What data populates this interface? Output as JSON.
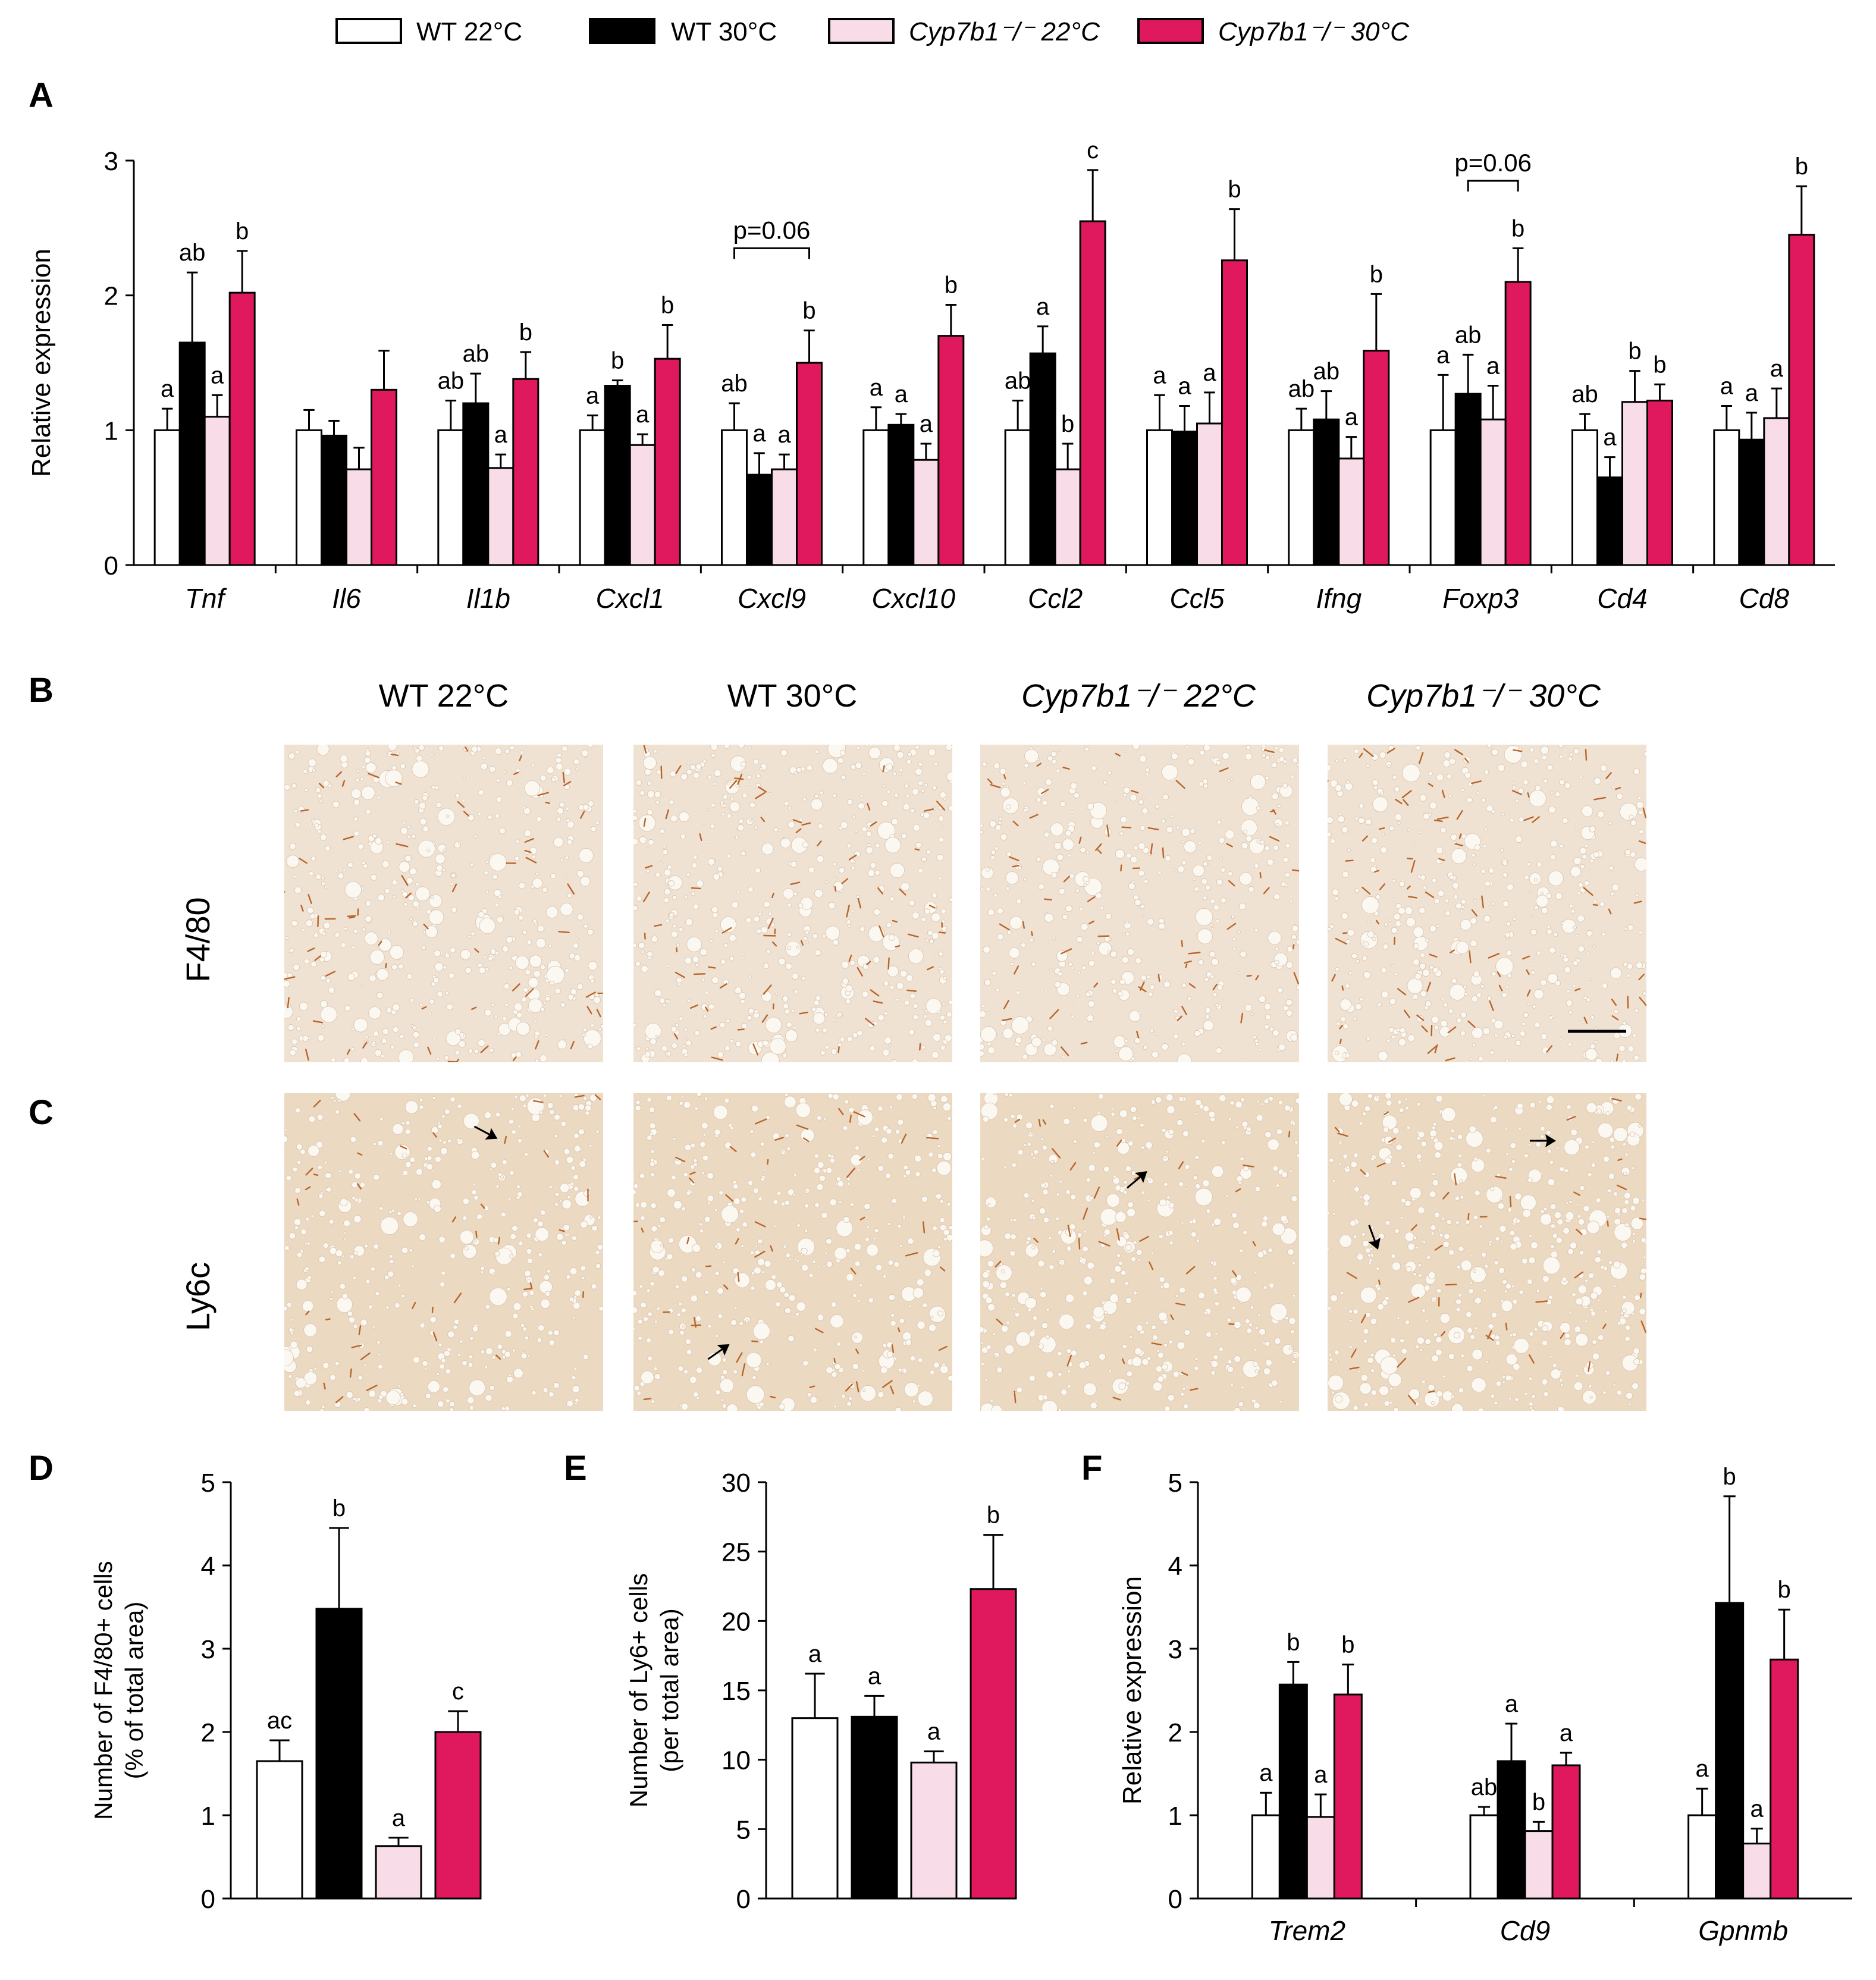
{
  "legend": [
    {
      "key": "wt22",
      "text": "WT 22°C",
      "fill": "#ffffff"
    },
    {
      "key": "wt30",
      "text": "WT 30°C",
      "fill": "#000000"
    },
    {
      "key": "ko22",
      "text": "Cyp7b1⁻/⁻ 22°C",
      "fill": "#f8dde8"
    },
    {
      "key": "ko30",
      "text": "Cyp7b1⁻/⁻ 30°C",
      "fill": "#e0195f"
    }
  ],
  "series_colors": {
    "wt22": "#ffffff",
    "wt30": "#000000",
    "ko22": "#f8dde8",
    "ko30": "#e0195f"
  },
  "panels": {
    "a": "A",
    "b": "B",
    "c": "C",
    "d": "D",
    "e": "E",
    "f": "F"
  },
  "histology": {
    "column_labels": [
      "WT 22°C",
      "WT 30°C",
      "Cyp7b1⁻/⁻ 22°C",
      "Cyp7b1⁻/⁻ 30°C"
    ],
    "row_labels": [
      "F4/80",
      "Ly6c"
    ]
  },
  "chart_data": [
    {
      "id": "A",
      "type": "bar",
      "ylabel": "Relative expression",
      "ylim": [
        0,
        3
      ],
      "yticks": [
        0,
        1,
        2,
        3
      ],
      "categories": [
        "Tnf",
        "Il6",
        "Il1b",
        "Cxcl1",
        "Cxcl9",
        "Cxcl10",
        "Ccl2",
        "Ccl5",
        "Ifng",
        "Foxp3",
        "Cd4",
        "Cd8"
      ],
      "series": [
        {
          "name": "WT 22°C",
          "values": [
            1,
            1,
            1,
            1,
            1,
            1,
            1,
            1,
            1,
            1,
            1,
            1
          ],
          "errors": [
            0.16,
            0.15,
            0.22,
            0.11,
            0.2,
            0.17,
            0.22,
            0.26,
            0.16,
            0.41,
            0.12,
            0.18
          ],
          "letters": [
            "a",
            "",
            "ab",
            "a",
            "ab",
            "a",
            "ab",
            "a",
            "ab",
            "a",
            "ab",
            "a"
          ]
        },
        {
          "name": "WT 30°C",
          "values": [
            1.65,
            0.96,
            1.2,
            1.33,
            0.67,
            1.04,
            1.57,
            0.99,
            1.08,
            1.27,
            0.65,
            0.93
          ],
          "errors": [
            0.52,
            0.11,
            0.22,
            0.04,
            0.16,
            0.08,
            0.2,
            0.19,
            0.21,
            0.29,
            0.15,
            0.2
          ],
          "letters": [
            "ab",
            "",
            "ab",
            "b",
            "a",
            "a",
            "a",
            "a",
            "ab",
            "ab",
            "a",
            "a"
          ]
        },
        {
          "name": "Cyp7b1⁻/⁻ 22°C",
          "values": [
            1.1,
            0.71,
            0.72,
            0.89,
            0.71,
            0.78,
            0.71,
            1.05,
            0.79,
            1.08,
            1.21,
            1.09
          ],
          "errors": [
            0.16,
            0.16,
            0.1,
            0.08,
            0.11,
            0.12,
            0.19,
            0.23,
            0.16,
            0.25,
            0.23,
            0.22
          ],
          "letters": [
            "a",
            "",
            "a",
            "a",
            "a",
            "a",
            "b",
            "a",
            "a",
            "a",
            "b",
            "a"
          ]
        },
        {
          "name": "Cyp7b1⁻/⁻ 30°C",
          "values": [
            2.02,
            1.3,
            1.38,
            1.53,
            1.5,
            1.7,
            2.55,
            2.26,
            1.59,
            2.1,
            1.22,
            2.45
          ],
          "errors": [
            0.31,
            0.29,
            0.2,
            0.25,
            0.24,
            0.23,
            0.38,
            0.38,
            0.42,
            0.25,
            0.12,
            0.36
          ],
          "letters": [
            "b",
            "",
            "b",
            "b",
            "b",
            "b",
            "c",
            "b",
            "b",
            "b",
            "b",
            "b"
          ]
        }
      ],
      "annotations": [
        {
          "text": "p=0.06",
          "category_index": 4,
          "from_series": 0,
          "to_series": 3,
          "y": 2.35
        },
        {
          "text": "p=0.06",
          "category_index": 9,
          "from_series": 1,
          "to_series": 3,
          "y": 2.85
        }
      ]
    },
    {
      "id": "D",
      "type": "bar",
      "ylabel": "Number of F4/80+ cells (% of total area)",
      "ylabel_lines": [
        "Number of F4/80+ cells",
        "(% of total area)"
      ],
      "ylim": [
        0,
        5
      ],
      "yticks": [
        0,
        1,
        2,
        3,
        4,
        5
      ],
      "categories": [
        "WT 22°C",
        "WT 30°C",
        "Cyp7b1⁻/⁻ 22°C",
        "Cyp7b1⁻/⁻ 30°C"
      ],
      "values": [
        1.65,
        3.48,
        0.63,
        2.0
      ],
      "errors": [
        0.25,
        0.97,
        0.1,
        0.25
      ],
      "letters": [
        "ac",
        "b",
        "a",
        "c"
      ]
    },
    {
      "id": "E",
      "type": "bar",
      "ylabel": "Number of Ly6+ cells (per total area)",
      "ylabel_lines": [
        "Number of Ly6+ cells",
        "(per total area)"
      ],
      "ylim": [
        0,
        30
      ],
      "yticks": [
        0,
        5,
        10,
        15,
        20,
        25,
        30
      ],
      "categories": [
        "WT 22°C",
        "WT 30°C",
        "Cyp7b1⁻/⁻ 22°C",
        "Cyp7b1⁻/⁻ 30°C"
      ],
      "values": [
        13.0,
        13.1,
        9.8,
        22.3
      ],
      "errors": [
        3.2,
        1.5,
        0.8,
        3.9
      ],
      "letters": [
        "a",
        "a",
        "a",
        "b"
      ]
    },
    {
      "id": "F",
      "type": "bar",
      "ylabel": "Relative expression",
      "ylim": [
        0,
        5
      ],
      "yticks": [
        0,
        1,
        2,
        3,
        4,
        5
      ],
      "categories": [
        "Trem2",
        "Cd9",
        "Gpnmb"
      ],
      "series": [
        {
          "name": "WT 22°C",
          "values": [
            1,
            1,
            1
          ],
          "errors": [
            0.27,
            0.1,
            0.32
          ],
          "letters": [
            "a",
            "ab",
            "a"
          ]
        },
        {
          "name": "WT 30°C",
          "values": [
            2.57,
            1.65,
            3.55
          ],
          "errors": [
            0.27,
            0.45,
            1.28
          ],
          "letters": [
            "b",
            "a",
            "b"
          ]
        },
        {
          "name": "Cyp7b1⁻/⁻ 22°C",
          "values": [
            0.98,
            0.81,
            0.66
          ],
          "errors": [
            0.27,
            0.11,
            0.18
          ],
          "letters": [
            "a",
            "b",
            "a"
          ]
        },
        {
          "name": "Cyp7b1⁻/⁻ 30°C",
          "values": [
            2.45,
            1.6,
            2.87
          ],
          "errors": [
            0.36,
            0.15,
            0.6
          ],
          "letters": [
            "b",
            "a",
            "b"
          ]
        }
      ]
    }
  ]
}
